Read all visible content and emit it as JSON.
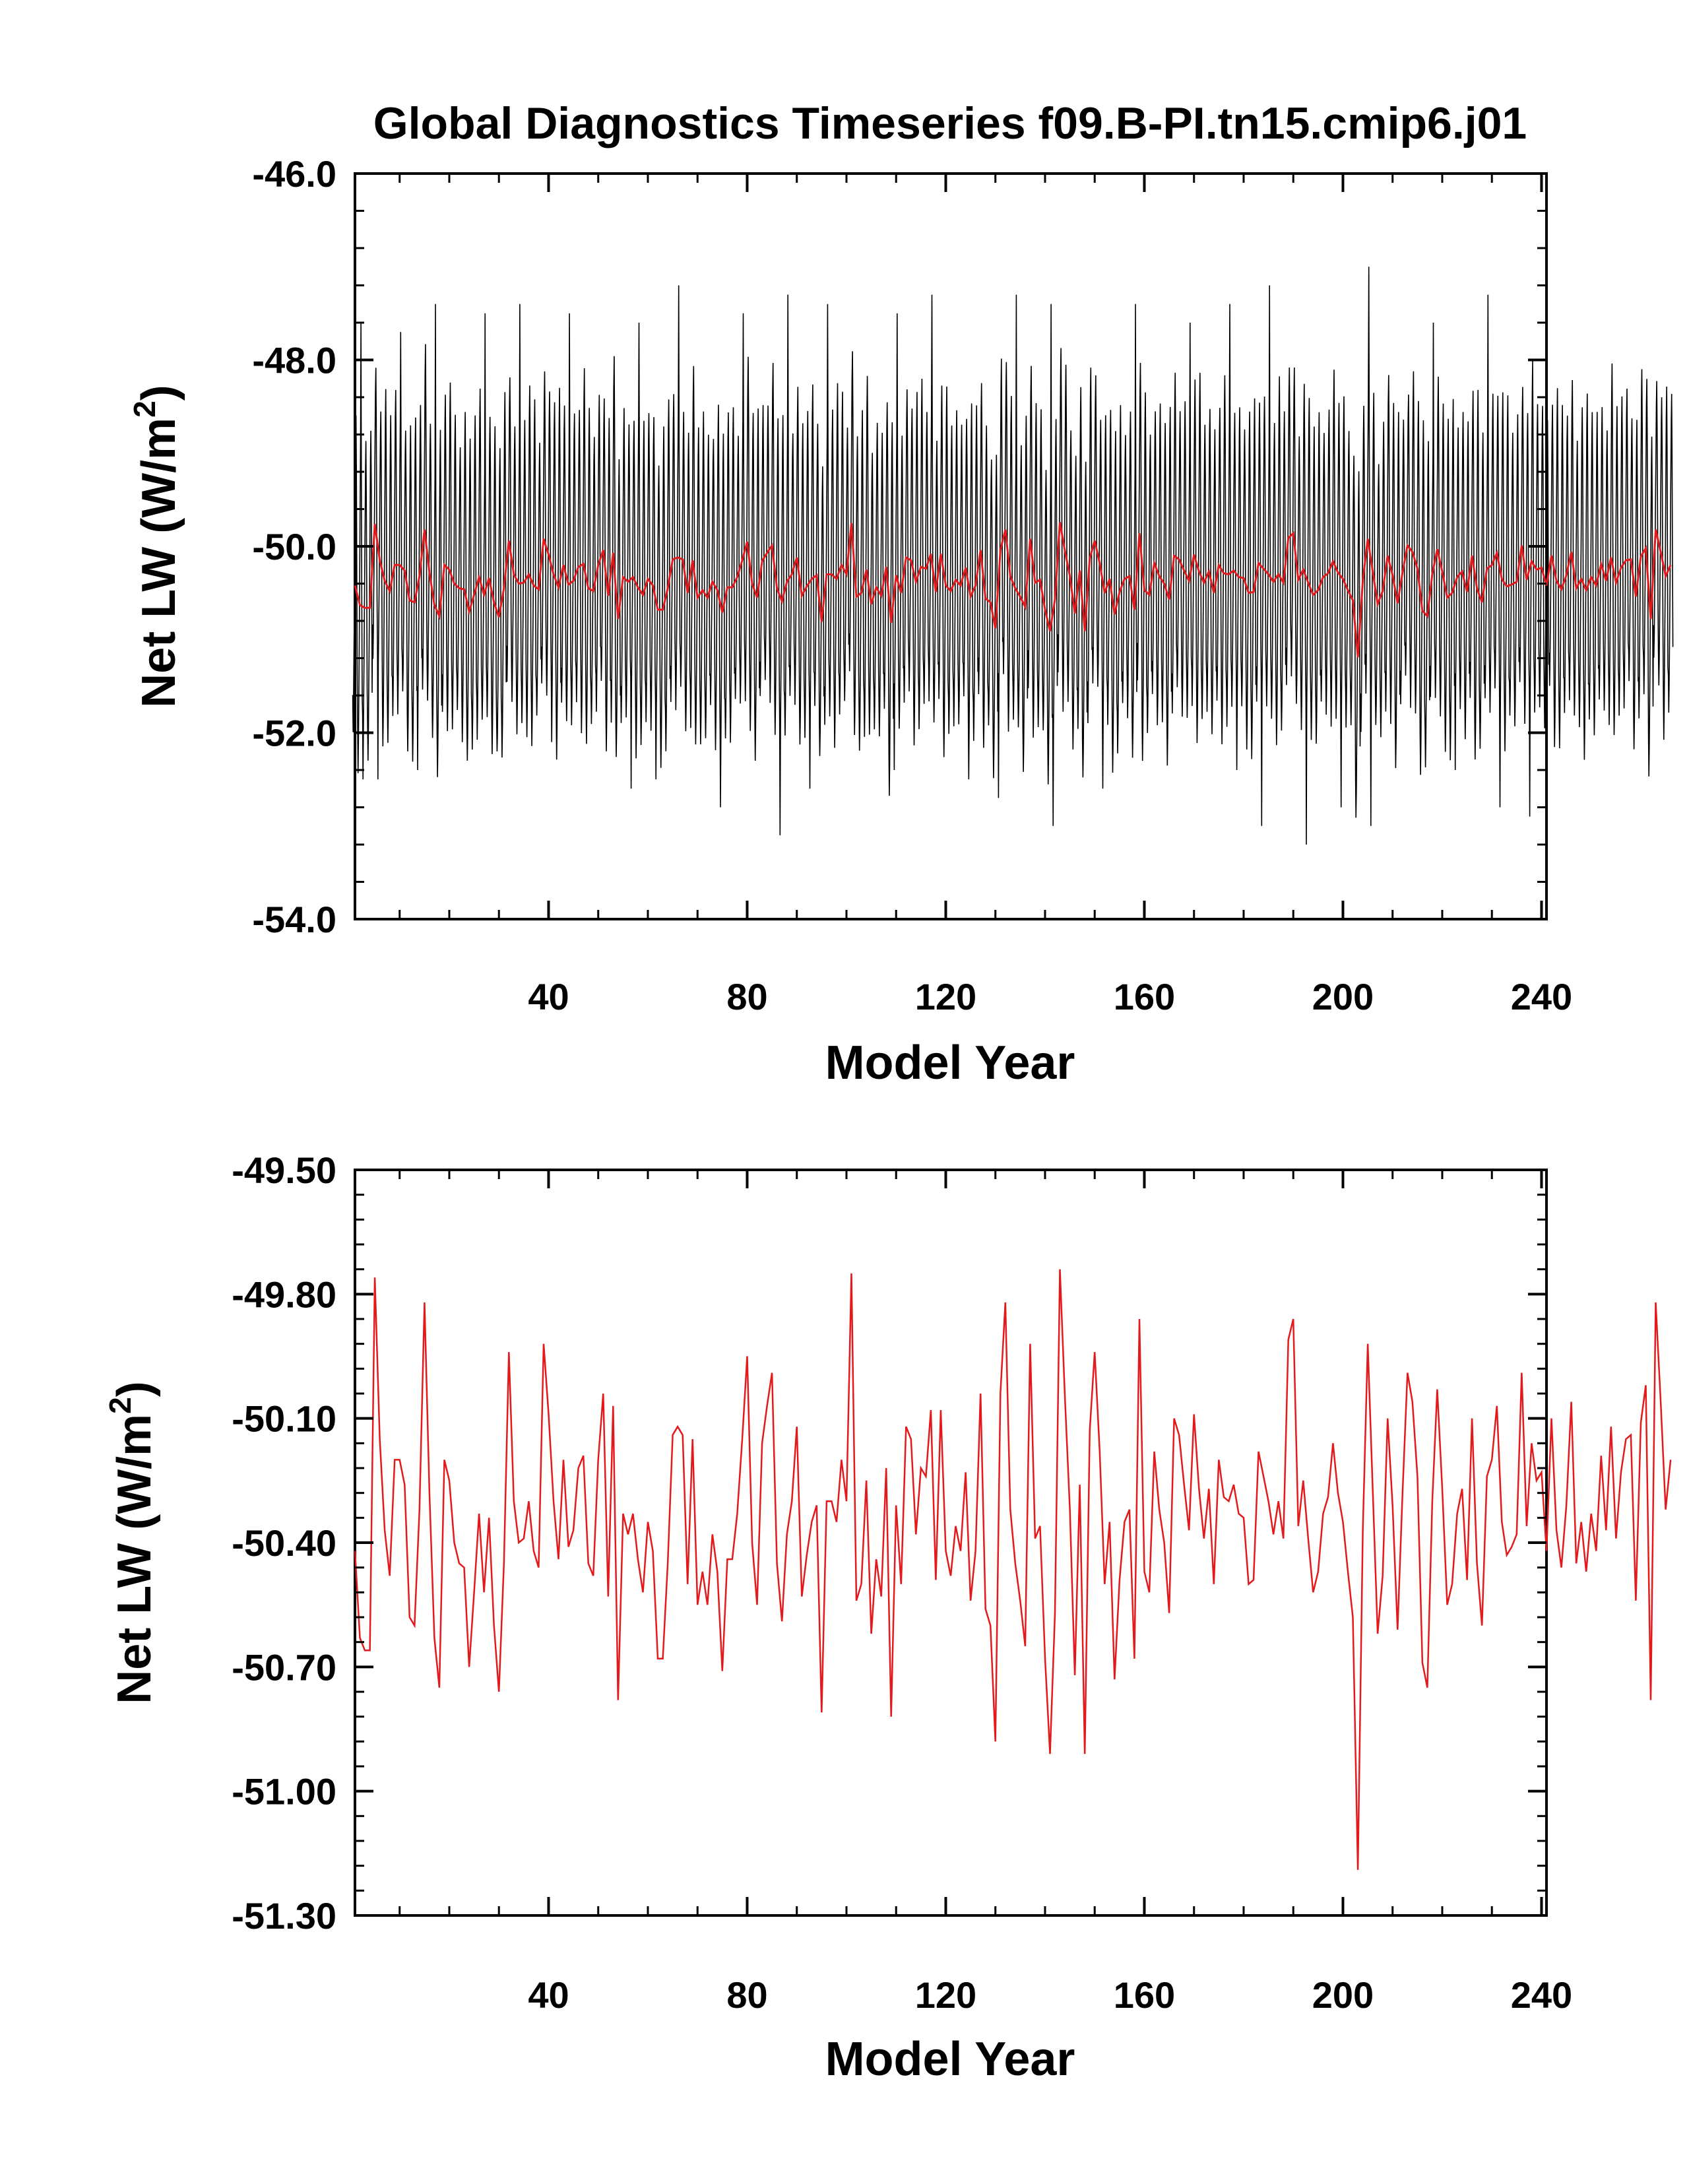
{
  "figure_title": "Global Diagnostics Timeseries f09.B-PI.tn15.cmip6.j01",
  "chart_data": [
    {
      "type": "line",
      "title": "Global Diagnostics Timeseries f09.B-PI.tn15.cmip6.j01",
      "xlabel": "Model Year",
      "ylabel_main": "Net LW (W/m",
      "ylabel_sup": "2",
      "ylabel_end": ")",
      "xlim": [
        1,
        241
      ],
      "ylim": [
        -54.0,
        -46.0
      ],
      "xticks": [
        40,
        80,
        120,
        160,
        200,
        240
      ],
      "xtick_labels": [
        "40",
        "80",
        "120",
        "160",
        "200",
        "240"
      ],
      "yticks": [
        -54.0,
        -52.0,
        -50.0,
        -48.0,
        -46.0
      ],
      "ytick_labels": [
        "-54.0",
        "-52.0",
        "-50.0",
        "-48.0",
        "-46.0"
      ],
      "grid": false,
      "series": [
        {
          "color": "#000000",
          "stroke_width": 1.6,
          "description_note": "monthly values: annual cycle between about -47.3 and -52.8 around the annual mean",
          "monthly_profile": [
            -51.3,
            -51.7,
            -51.4,
            -50.9,
            -50.4,
            -49.8,
            -49.2,
            -48.6,
            -48.3,
            -48.9,
            -50.0,
            -51.0
          ],
          "monthly_extremes": [
            [
              3,
              -52.5
            ],
            [
              6,
              -52.5
            ],
            [
              14,
              -52.4
            ],
            [
              24,
              -52.3
            ],
            [
              30,
              -52.2
            ],
            [
              41,
              -52.1
            ],
            [
              52,
              -52.2
            ],
            [
              57,
              -52.6
            ],
            [
              62,
              -52.5
            ],
            [
              75,
              -52.8
            ],
            [
              87,
              -53.1
            ],
            [
              93,
              -52.6
            ],
            [
              110,
              -52.4
            ],
            [
              125,
              -52.5
            ],
            [
              131,
              -52.7
            ],
            [
              142,
              -53.0
            ],
            [
              152,
              -52.6
            ],
            [
              179,
              -52.4
            ],
            [
              184,
              -53.0
            ],
            [
              193,
              -53.2
            ],
            [
              200,
              -52.8
            ],
            [
              206,
              -53.0
            ],
            [
              223,
              -52.4
            ],
            [
              232,
              -52.8
            ],
            [
              238,
              -52.9
            ],
            [
              2,
              -47.6
            ],
            [
              10,
              -47.7
            ],
            [
              17,
              -47.4
            ],
            [
              27,
              -47.5
            ],
            [
              34,
              -47.4
            ],
            [
              44,
              -47.5
            ],
            [
              58,
              -47.6
            ],
            [
              66,
              -47.2
            ],
            [
              79,
              -47.5
            ],
            [
              88,
              -47.3
            ],
            [
              96,
              -47.4
            ],
            [
              110,
              -47.5
            ],
            [
              117,
              -47.3
            ],
            [
              134,
              -47.3
            ],
            [
              141,
              -47.4
            ],
            [
              158,
              -47.4
            ],
            [
              169,
              -47.6
            ],
            [
              177,
              -47.4
            ],
            [
              185,
              -47.2
            ],
            [
              205,
              -47.0
            ],
            [
              218,
              -47.6
            ],
            [
              229,
              -47.3
            ]
          ]
        },
        {
          "color": "#e31a1c",
          "stroke_width": 3,
          "description_note": "annual means, same values as the lower panel",
          "values_ref": "annual_means"
        }
      ]
    },
    {
      "type": "line",
      "xlabel": "Model Year",
      "ylabel_main": "Net LW (W/m",
      "ylabel_sup": "2",
      "ylabel_end": ")",
      "xlim": [
        1,
        241
      ],
      "ylim": [
        -51.3,
        -49.5
      ],
      "xticks": [
        40,
        80,
        120,
        160,
        200,
        240
      ],
      "xtick_labels": [
        "40",
        "80",
        "120",
        "160",
        "200",
        "240"
      ],
      "yticks": [
        -51.3,
        -51.0,
        -50.7,
        -50.4,
        -50.1,
        -49.8,
        -49.5
      ],
      "ytick_labels": [
        "-51.30",
        "-51.00",
        "-50.70",
        "-50.40",
        "-50.10",
        "-49.80",
        "-49.50"
      ],
      "grid": false,
      "series": [
        {
          "color": "#e31a1c",
          "stroke_width": 2.5,
          "x_start": 1,
          "x_step": 1,
          "values": [
            -50.42,
            -50.63,
            -50.66,
            -50.66,
            -49.76,
            -50.15,
            -50.37,
            -50.48,
            -50.2,
            -50.2,
            -50.26,
            -50.58,
            -50.6,
            -50.32,
            -49.82,
            -50.28,
            -50.63,
            -50.75,
            -50.2,
            -50.25,
            -50.4,
            -50.45,
            -50.46,
            -50.7,
            -50.52,
            -50.33,
            -50.52,
            -50.34,
            -50.6,
            -50.76,
            -50.45,
            -49.94,
            -50.3,
            -50.4,
            -50.39,
            -50.3,
            -50.42,
            -50.46,
            -49.92,
            -50.09,
            -50.3,
            -50.44,
            -50.2,
            -50.41,
            -50.37,
            -50.22,
            -50.19,
            -50.45,
            -50.48,
            -50.2,
            -50.04,
            -50.53,
            -50.07,
            -50.78,
            -50.33,
            -50.38,
            -50.33,
            -50.44,
            -50.52,
            -50.35,
            -50.42,
            -50.68,
            -50.68,
            -50.45,
            -50.14,
            -50.12,
            -50.14,
            -50.5,
            -50.15,
            -50.55,
            -50.47,
            -50.55,
            -50.38,
            -50.47,
            -50.71,
            -50.44,
            -50.44,
            -50.33,
            -50.15,
            -49.95,
            -50.4,
            -50.55,
            -50.16,
            -50.07,
            -49.99,
            -50.45,
            -50.59,
            -50.38,
            -50.3,
            -50.12,
            -50.53,
            -50.43,
            -50.35,
            -50.31,
            -50.81,
            -50.3,
            -50.3,
            -50.35,
            -50.2,
            -50.3,
            -49.75,
            -50.54,
            -50.5,
            -50.25,
            -50.62,
            -50.44,
            -50.53,
            -50.22,
            -50.82,
            -50.31,
            -50.5,
            -50.12,
            -50.15,
            -50.38,
            -50.22,
            -50.24,
            -50.08,
            -50.49,
            -50.08,
            -50.42,
            -50.48,
            -50.36,
            -50.42,
            -50.23,
            -50.54,
            -50.42,
            -50.04,
            -50.56,
            -50.6,
            -50.88,
            -50.04,
            -49.82,
            -50.32,
            -50.45,
            -50.54,
            -50.65,
            -49.92,
            -50.39,
            -50.36,
            -50.68,
            -50.91,
            -50.57,
            -49.74,
            -50.05,
            -50.32,
            -50.72,
            -50.26,
            -50.91,
            -50.13,
            -49.94,
            -50.18,
            -50.5,
            -50.35,
            -50.73,
            -50.49,
            -50.35,
            -50.32,
            -50.68,
            -49.86,
            -50.47,
            -50.52,
            -50.18,
            -50.32,
            -50.4,
            -50.57,
            -50.1,
            -50.14,
            -50.26,
            -50.37,
            -50.09,
            -50.27,
            -50.39,
            -50.27,
            -50.5,
            -50.2,
            -50.29,
            -50.3,
            -50.26,
            -50.33,
            -50.34,
            -50.5,
            -50.49,
            -50.18,
            -50.24,
            -50.3,
            -50.38,
            -50.3,
            -50.39,
            -49.91,
            -49.86,
            -50.36,
            -50.25,
            -50.39,
            -50.52,
            -50.47,
            -50.33,
            -50.29,
            -50.16,
            -50.28,
            -50.35,
            -50.47,
            -50.58,
            -51.19,
            -50.37,
            -49.92,
            -50.27,
            -50.62,
            -50.48,
            -50.1,
            -50.31,
            -50.61,
            -50.28,
            -49.99,
            -50.06,
            -50.24,
            -50.69,
            -50.75,
            -50.3,
            -50.03,
            -50.27,
            -50.55,
            -50.5,
            -50.33,
            -50.27,
            -50.49,
            -50.1,
            -50.45,
            -50.6,
            -50.24,
            -50.2,
            -50.07,
            -50.35,
            -50.43,
            -50.41,
            -50.38,
            -49.99,
            -50.36,
            -50.16,
            -50.25,
            -50.23,
            -50.42,
            -50.1,
            -50.37,
            -50.46,
            -50.31,
            -50.06,
            -50.45,
            -50.35,
            -50.47,
            -50.33,
            -50.42,
            -50.19,
            -50.37,
            -50.12,
            -50.39,
            -50.23,
            -50.15,
            -50.14,
            -50.54,
            -50.11,
            -50.02,
            -50.78,
            -49.82,
            -50.06,
            -50.32,
            -50.2
          ]
        }
      ]
    }
  ]
}
